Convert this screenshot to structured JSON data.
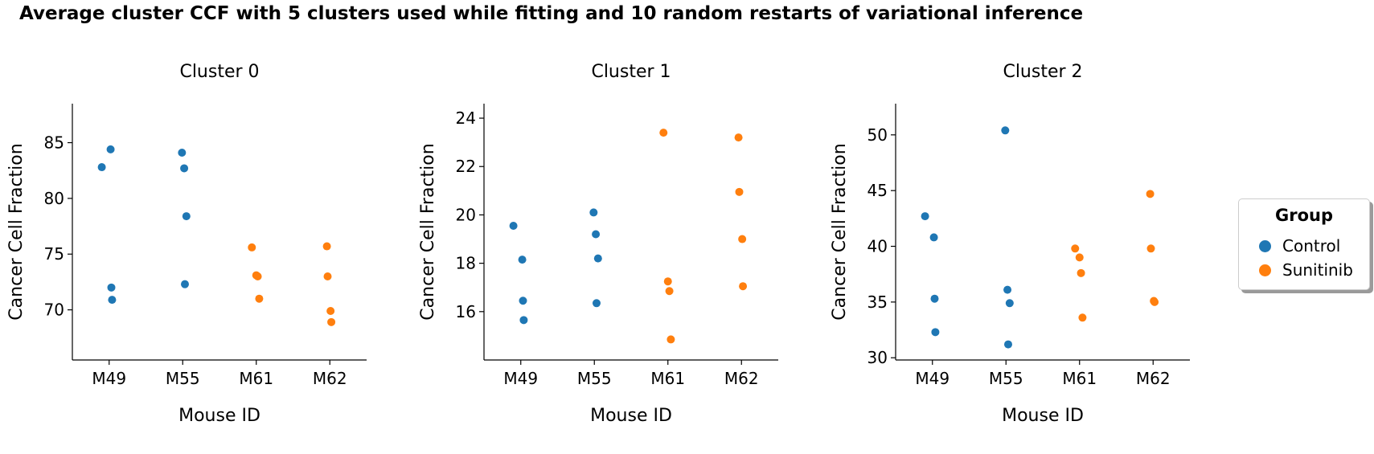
{
  "figure": {
    "suptitle": "Average cluster CCF with 5 clusters used while fitting and 10 random restarts of variational inference"
  },
  "legend": {
    "title": "Group",
    "items": [
      {
        "label": "Control",
        "color": "#1f77b4"
      },
      {
        "label": "Sunitinib",
        "color": "#ff7f0e"
      }
    ]
  },
  "chart_data": [
    {
      "type": "scatter",
      "title": "Cluster 0",
      "xlabel": "Mouse ID",
      "ylabel": "Cancer Cell Fraction",
      "categories": [
        "M49",
        "M55",
        "M61",
        "M62"
      ],
      "ylim": [
        65.5,
        88.5
      ],
      "yticks": [
        70,
        75,
        80,
        85
      ],
      "series": [
        {
          "name": "Control",
          "color": "#1f77b4",
          "points": [
            {
              "x": "M49",
              "y": 82.8
            },
            {
              "x": "M49",
              "y": 84.4
            },
            {
              "x": "M49",
              "y": 72.0
            },
            {
              "x": "M49",
              "y": 70.9
            },
            {
              "x": "M55",
              "y": 84.1
            },
            {
              "x": "M55",
              "y": 82.7
            },
            {
              "x": "M55",
              "y": 78.4
            },
            {
              "x": "M55",
              "y": 72.3
            }
          ]
        },
        {
          "name": "Sunitinib",
          "color": "#ff7f0e",
          "points": [
            {
              "x": "M61",
              "y": 75.6
            },
            {
              "x": "M61",
              "y": 73.1
            },
            {
              "x": "M61",
              "y": 73.0
            },
            {
              "x": "M61",
              "y": 71.0
            },
            {
              "x": "M62",
              "y": 75.7
            },
            {
              "x": "M62",
              "y": 73.0
            },
            {
              "x": "M62",
              "y": 69.9
            },
            {
              "x": "M62",
              "y": 68.9
            }
          ]
        }
      ]
    },
    {
      "type": "scatter",
      "title": "Cluster 1",
      "xlabel": "Mouse ID",
      "ylabel": "Cancer Cell Fraction",
      "categories": [
        "M49",
        "M55",
        "M61",
        "M62"
      ],
      "ylim": [
        14.0,
        24.6
      ],
      "yticks": [
        16,
        18,
        20,
        22,
        24
      ],
      "series": [
        {
          "name": "Control",
          "color": "#1f77b4",
          "points": [
            {
              "x": "M49",
              "y": 19.55
            },
            {
              "x": "M49",
              "y": 18.15
            },
            {
              "x": "M49",
              "y": 16.45
            },
            {
              "x": "M49",
              "y": 15.65
            },
            {
              "x": "M55",
              "y": 20.1
            },
            {
              "x": "M55",
              "y": 19.2
            },
            {
              "x": "M55",
              "y": 18.2
            },
            {
              "x": "M55",
              "y": 16.35
            }
          ]
        },
        {
          "name": "Sunitinib",
          "color": "#ff7f0e",
          "points": [
            {
              "x": "M61",
              "y": 23.4
            },
            {
              "x": "M61",
              "y": 17.25
            },
            {
              "x": "M61",
              "y": 16.85
            },
            {
              "x": "M61",
              "y": 14.85
            },
            {
              "x": "M62",
              "y": 23.2
            },
            {
              "x": "M62",
              "y": 20.95
            },
            {
              "x": "M62",
              "y": 19.0
            },
            {
              "x": "M62",
              "y": 17.05
            }
          ]
        }
      ]
    },
    {
      "type": "scatter",
      "title": "Cluster 2",
      "xlabel": "Mouse ID",
      "ylabel": "Cancer Cell Fraction",
      "categories": [
        "M49",
        "M55",
        "M61",
        "M62"
      ],
      "ylim": [
        29.8,
        52.8
      ],
      "yticks": [
        30,
        35,
        40,
        45,
        50
      ],
      "series": [
        {
          "name": "Control",
          "color": "#1f77b4",
          "points": [
            {
              "x": "M49",
              "y": 42.7
            },
            {
              "x": "M49",
              "y": 40.8
            },
            {
              "x": "M49",
              "y": 35.3
            },
            {
              "x": "M49",
              "y": 32.3
            },
            {
              "x": "M55",
              "y": 50.4
            },
            {
              "x": "M55",
              "y": 36.1
            },
            {
              "x": "M55",
              "y": 34.9
            },
            {
              "x": "M55",
              "y": 31.2
            }
          ]
        },
        {
          "name": "Sunitinib",
          "color": "#ff7f0e",
          "points": [
            {
              "x": "M61",
              "y": 39.8
            },
            {
              "x": "M61",
              "y": 39.0
            },
            {
              "x": "M61",
              "y": 37.6
            },
            {
              "x": "M61",
              "y": 33.6
            },
            {
              "x": "M62",
              "y": 44.7
            },
            {
              "x": "M62",
              "y": 39.8
            },
            {
              "x": "M62",
              "y": 35.1
            },
            {
              "x": "M62",
              "y": 35.0
            }
          ]
        }
      ]
    }
  ]
}
